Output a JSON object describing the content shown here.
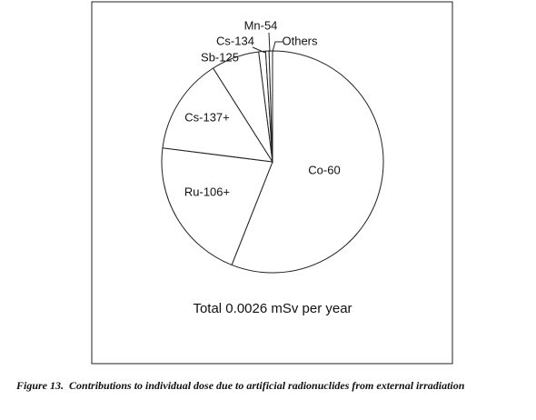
{
  "chart_data": {
    "type": "pie",
    "categories": [
      "Co-60",
      "Ru-106+",
      "Cs-137+",
      "Sb-125",
      "Cs-134",
      "Mn-54",
      "Others"
    ],
    "values": [
      56,
      21,
      14,
      7,
      1,
      0.5,
      0.5
    ],
    "note": "Total 0.0026 mSv per year"
  },
  "caption": {
    "label": "Figure 13.",
    "text": "Contributions to individual dose due to artificial radionuclides from external irradiation"
  }
}
